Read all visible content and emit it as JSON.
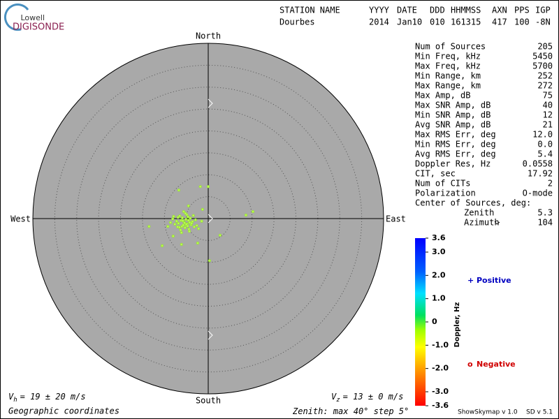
{
  "logo": {
    "top": "Lowell",
    "bottom": "DIGISONDE"
  },
  "header": {
    "labels": [
      "STATION NAME",
      "YYYY",
      "DATE",
      "DDD",
      "HHMMSS",
      "AXN",
      "PPS",
      "IGP"
    ],
    "values": [
      "Dourbes",
      "2014",
      "Jan10",
      "010",
      "161315",
      "417",
      "100",
      "-8N"
    ]
  },
  "stats": {
    "rows": [
      [
        "Num of Sources",
        "205"
      ],
      [
        "Min Freq, kHz",
        "5450"
      ],
      [
        "Max Freq, kHz",
        "5700"
      ],
      [
        "Min Range, km",
        "252"
      ],
      [
        "Max Range, km",
        "272"
      ],
      [
        "Max Amp, dB",
        "75"
      ],
      [
        "Max SNR Amp, dB",
        "40"
      ],
      [
        "Min SNR Amp, dB",
        "12"
      ],
      [
        "Avg SNR Amp, dB",
        "21"
      ],
      [
        "Max RMS Err, deg",
        "12.0"
      ],
      [
        "Min RMS Err, deg",
        "0.0"
      ],
      [
        "Avg RMS Err, deg",
        "5.4"
      ],
      [
        "Doppler Res, Hz",
        "0.0558"
      ],
      [
        "CIT, sec",
        "17.92"
      ],
      [
        "Num of CITs",
        "2"
      ],
      [
        "Polarization",
        "O-mode"
      ]
    ],
    "center_title": "Center of Sources, deg:",
    "center": [
      [
        "Zenith",
        "5.3"
      ],
      [
        "Azimuth",
        "104"
      ]
    ]
  },
  "footer": {
    "vh": {
      "symbol": "V",
      "sub": "h",
      "text": "= 19 ± 20 m/s"
    },
    "vz": {
      "symbol": "V",
      "sub": "z",
      "text": "= 13 ± 0 m/s"
    },
    "coords": "Geographic coordinates",
    "zenith_label": "Zenith: max",
    "zenith_max": {
      "value": 40,
      "label": "40°"
    },
    "step_label": "step",
    "zenith_step": {
      "value": 5,
      "label": "5°"
    },
    "version1": "ShowSkymap v 1.0",
    "version2": "SD v 5.1"
  },
  "chart_data": {
    "type": "scatter",
    "color": "#b8f850",
    "directions": {
      "north": "North",
      "south": "South",
      "east": "East",
      "west": "West"
    },
    "xlim": [
      -40,
      40
    ],
    "ylim": [
      -40,
      40
    ],
    "x": [
      -5.5,
      -4.8,
      -6.2,
      -5.0,
      -4.2,
      -6.8,
      -5.9,
      -3.9,
      -5.3,
      -4.6,
      -7.2,
      -6.0,
      -5.1,
      -4.4,
      -3.6,
      -6.5,
      -5.7,
      -4.9,
      -7.6,
      -3.2,
      -5.4,
      -6.3,
      -4.1,
      -5.8,
      -4.7,
      -6.9,
      -3.8,
      -5.2,
      -2.9,
      -8.1,
      -6.6,
      -4.3,
      -5.6,
      -7.0,
      -3.4,
      -6.1,
      -4.5,
      -5.0,
      -2.6,
      -7.9,
      -8.6,
      -9.2,
      -1.5,
      -2.2,
      -1.8,
      0.0,
      -6.7,
      10.2,
      0.3,
      2.7,
      -10.5,
      -13.5,
      -2.4,
      -6.1,
      -4.5,
      -1.3,
      -8.0,
      8.6
    ],
    "y": [
      -0.8,
      -1.2,
      -0.4,
      -1.6,
      -0.9,
      -1.1,
      0.2,
      -1.4,
      -2.1,
      0.4,
      -0.6,
      -1.8,
      -0.2,
      -2.4,
      -0.7,
      0.6,
      -1.5,
      0.9,
      -1.3,
      -1.9,
      -1.0,
      -2.6,
      0.1,
      -0.5,
      -1.7,
      0.3,
      -1.1,
      1.2,
      -0.3,
      -0.1,
      -2.0,
      -2.9,
      1.6,
      -1.9,
      0.7,
      -3.2,
      -0.4,
      -1.3,
      -1.6,
      0.5,
      -0.9,
      -1.8,
      -0.6,
      -2.3,
      7.3,
      7.3,
      6.5,
      1.6,
      -9.6,
      -3.8,
      -6.2,
      -1.8,
      -5.6,
      -5.9,
      2.9,
      2.1,
      -4.0,
      0.8
    ],
    "colorbar": {
      "label": "Doppler, Hz",
      "clim": [
        -3.6,
        3.6
      ],
      "ticks": [
        3.6,
        {
          "value": 3,
          "label": "3.0"
        },
        {
          "value": 2,
          "label": "2.0"
        },
        {
          "value": 1,
          "label": "1.0"
        },
        0,
        {
          "value": -1,
          "label": "-1.0"
        },
        {
          "value": -2,
          "label": "-2.0"
        },
        {
          "value": -3,
          "label": "-3.0"
        },
        -3.6
      ]
    },
    "polarity": [
      {
        "symbol": "+",
        "name": "Positive",
        "color": "#0000c0"
      },
      {
        "symbol": "o",
        "name": "Negative",
        "color": "#d00000"
      }
    ]
  }
}
